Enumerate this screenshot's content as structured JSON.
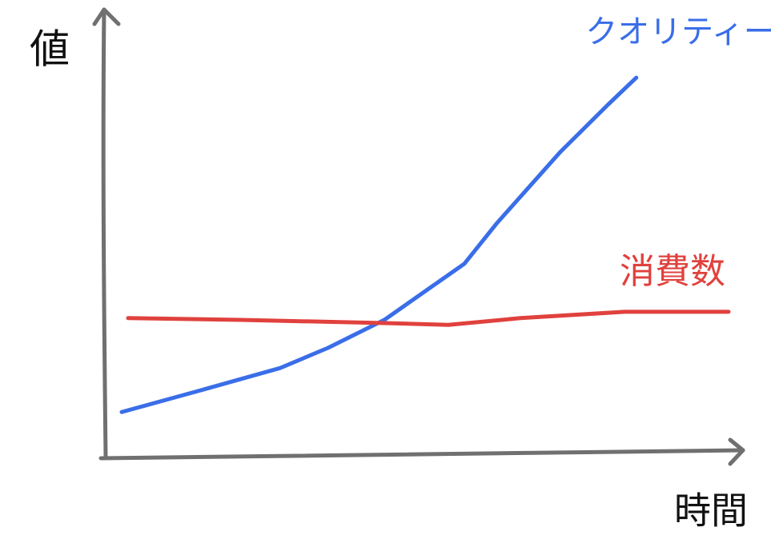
{
  "chart_data": {
    "type": "line",
    "y_label": "値",
    "x_label": "時間",
    "xlim": [
      0,
      100
    ],
    "ylim": [
      0,
      100
    ],
    "series": [
      {
        "name": "クオリティー",
        "color": "#3a6ee8",
        "x": [
          2.75,
          15,
          27.5,
          35,
          43.75,
          56.25,
          61.25,
          71.25,
          78.75,
          83.1
        ],
        "values": [
          10.1,
          14.9,
          19.9,
          24.4,
          30.6,
          43.1,
          52,
          68,
          78.6,
          84.5
        ]
      },
      {
        "name": "消費数",
        "color": "#e0413d",
        "x": [
          3.75,
          21.25,
          43.75,
          53.75,
          65,
          81.25,
          97.5
        ],
        "values": [
          31,
          30.6,
          29.9,
          29.5,
          31,
          32.4,
          32.4
        ]
      }
    ]
  }
}
